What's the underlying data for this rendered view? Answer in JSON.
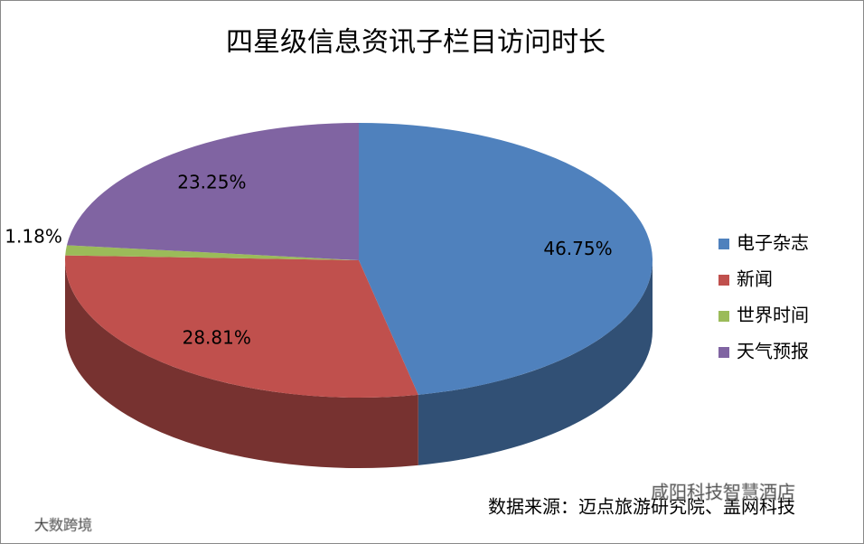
{
  "chart_data": {
    "type": "pie",
    "title": "四星级信息资讯子栏目访问时长",
    "categories": [
      "电子杂志",
      "新闻",
      "世界时间",
      "天气预报"
    ],
    "values": [
      46.75,
      28.81,
      1.18,
      23.25
    ],
    "value_labels": [
      "46.75%",
      "28.81%",
      "1.18%",
      "23.25%"
    ],
    "colors": [
      "#4f81bd",
      "#c0504d",
      "#9bbb59",
      "#8064a2"
    ],
    "legend": "right",
    "source": "数据来源：迈点旅游研究院、盖网科技",
    "watermarks": [
      "咸阳科技智慧酒店",
      "大数跨境"
    ]
  }
}
